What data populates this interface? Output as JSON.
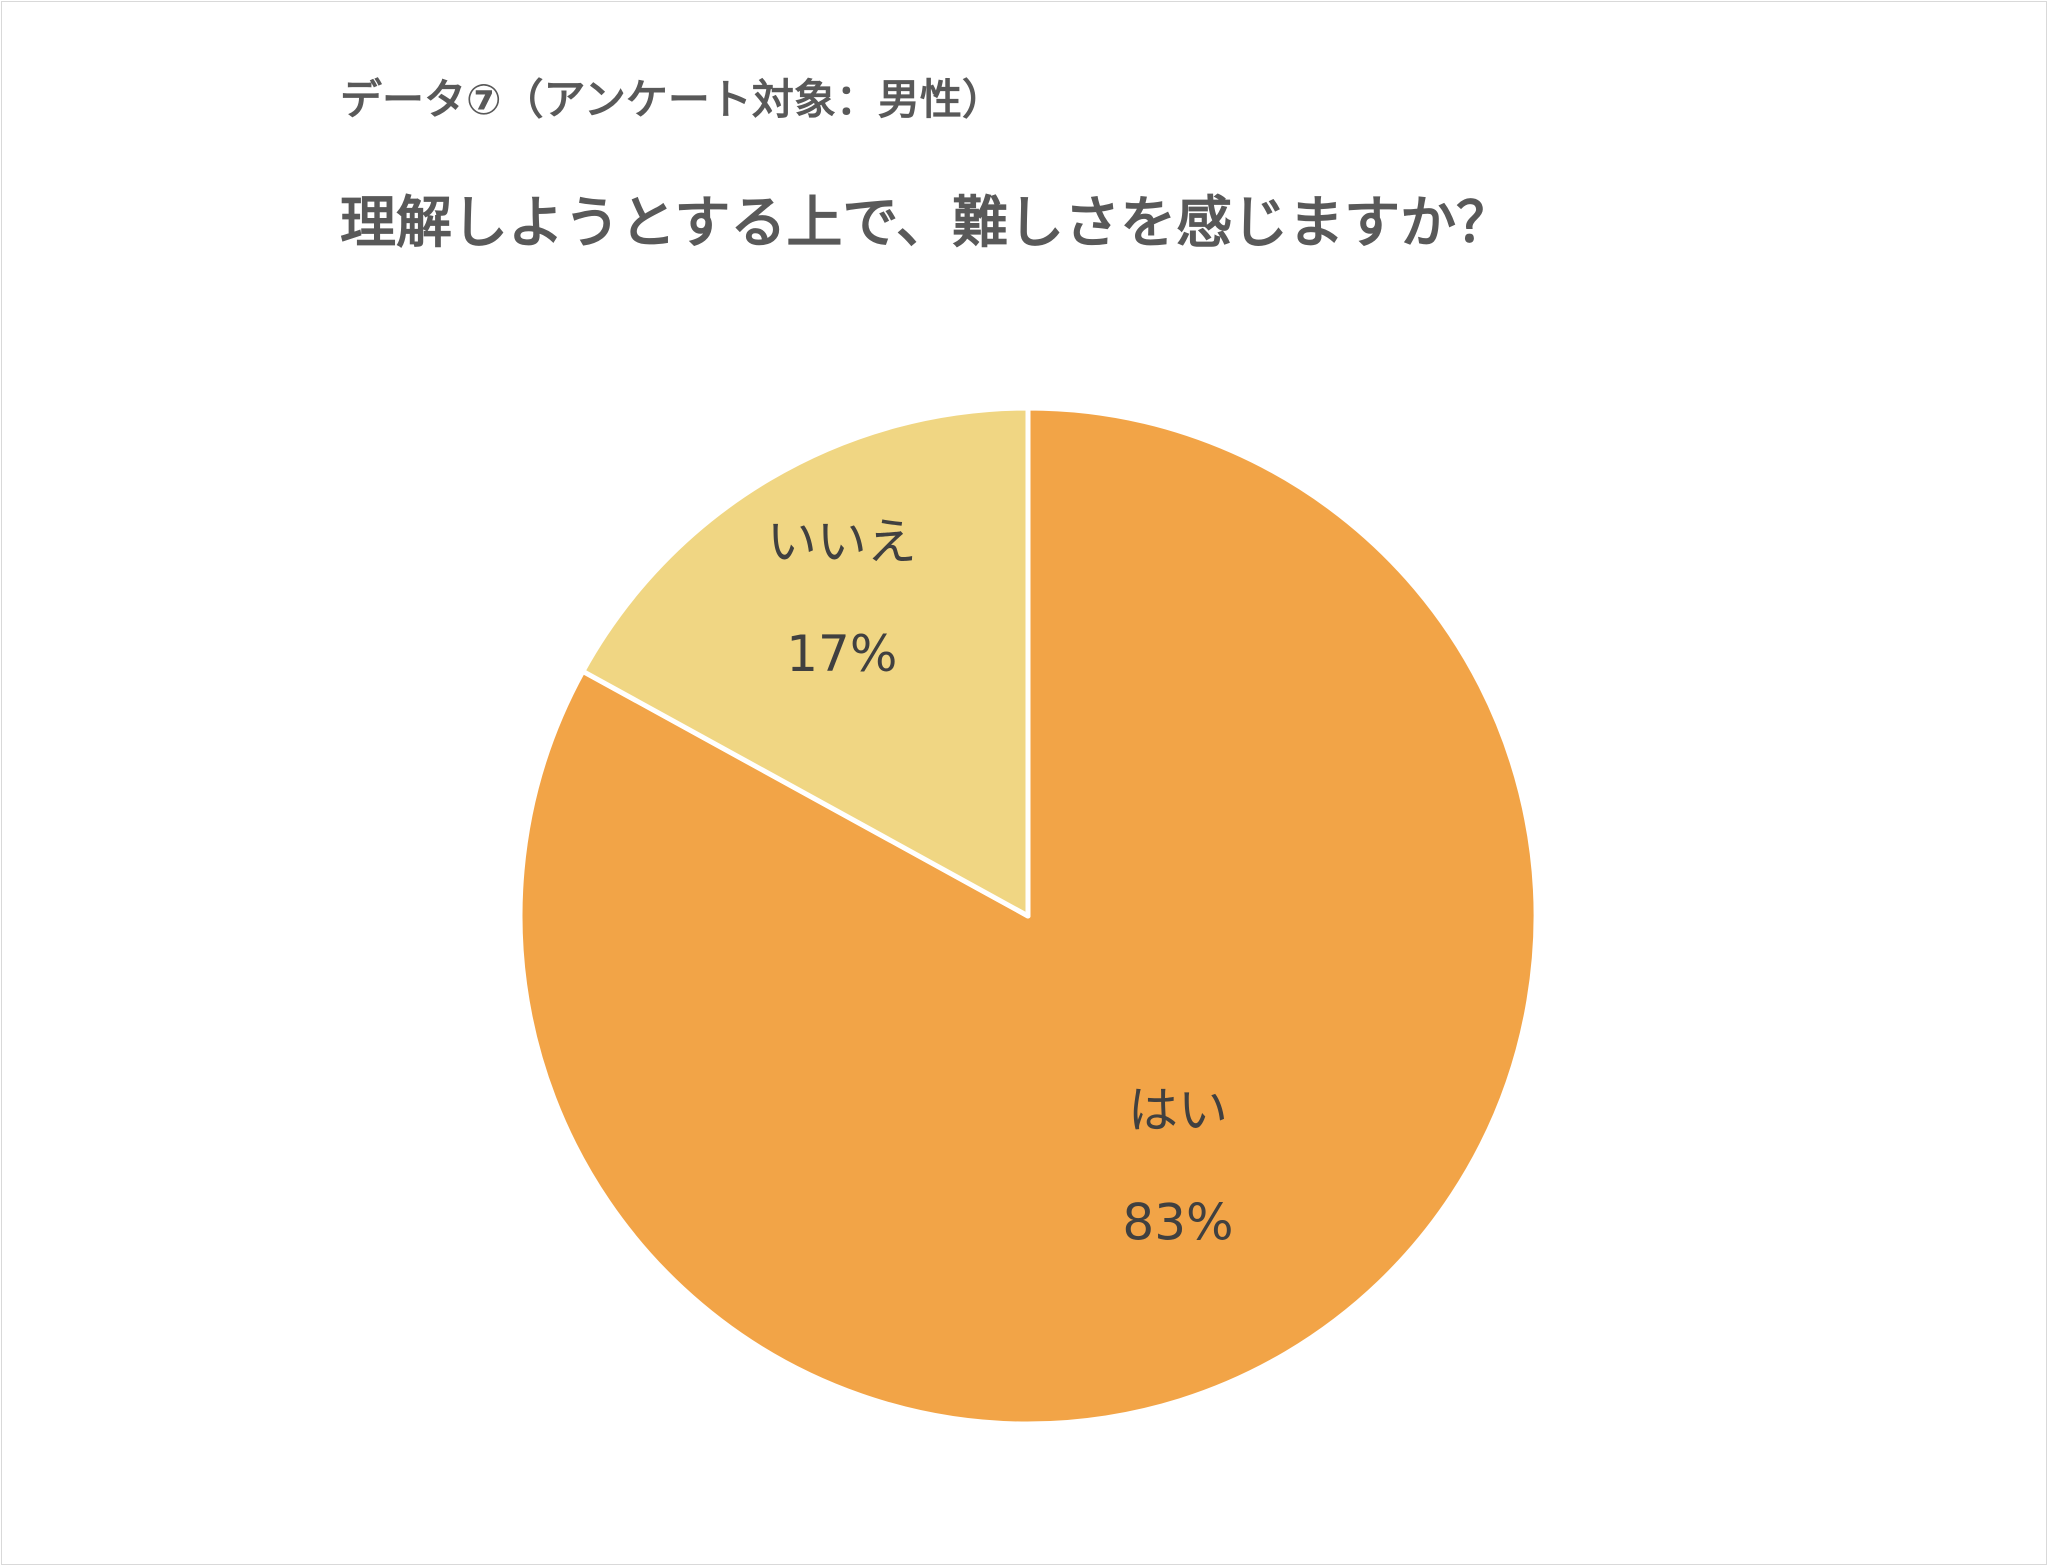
{
  "header": {
    "subtitle": "データ⑦（アンケート対象：男性）",
    "title": "理解しようとする上で、難しさを感じますか？"
  },
  "colors": {
    "yes": "#F2A447",
    "no": "#F0D683",
    "separator": "#FFFFFF",
    "label_text": "#404040",
    "title_text": "#595959",
    "frame": "#D9D9D9"
  },
  "chart_data": {
    "type": "pie",
    "start": "12 o'clock",
    "direction": "clockwise",
    "slices": [
      {
        "label": "はい",
        "value": 83,
        "value_label": "83%",
        "color": "#F2A447"
      },
      {
        "label": "いいえ",
        "value": 17,
        "value_label": "17%",
        "color": "#F0D683"
      }
    ]
  }
}
